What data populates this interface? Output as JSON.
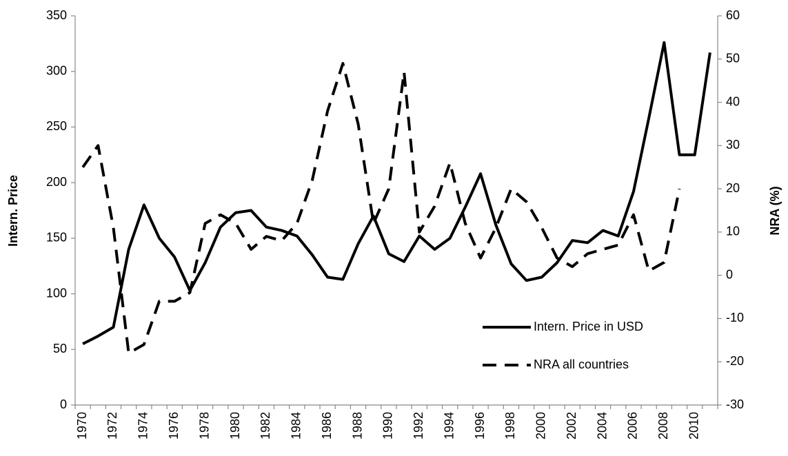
{
  "chart_data": {
    "type": "line",
    "y_label": "Intern. Price",
    "y2_label": "NRA (%)",
    "categories": [
      "1970",
      null,
      "1972",
      null,
      "1974",
      null,
      "1976",
      null,
      "1978",
      null,
      "1980",
      null,
      "1982",
      null,
      "1984",
      null,
      "1986",
      null,
      "1988",
      null,
      "1990",
      null,
      "1992",
      null,
      "1994",
      null,
      "1996",
      null,
      "1998",
      null,
      "2000",
      null,
      "2002",
      null,
      "2004",
      null,
      "2006",
      null,
      "2008",
      null,
      "2010",
      null
    ],
    "series": [
      {
        "name": "Intern. Price in USD",
        "color": "#000000",
        "style": "solid",
        "values": [
          55,
          62,
          70,
          140,
          180,
          150,
          133,
          103,
          128,
          160,
          173,
          175,
          160,
          157,
          152,
          135,
          115,
          113,
          145,
          170,
          136,
          129,
          152,
          140,
          150,
          178,
          208,
          162,
          127,
          112,
          115,
          128,
          148,
          146,
          157,
          152,
          192,
          258,
          326,
          225,
          225,
          317
        ]
      },
      {
        "name": "NRA all countries",
        "color": "#000000",
        "style": "dashed",
        "axis": "y2",
        "values": [
          25,
          30,
          11,
          -18,
          -16,
          -6,
          -6,
          -4,
          12,
          14,
          12,
          6,
          9,
          8,
          12,
          22,
          38,
          49,
          35,
          12,
          20,
          47,
          10,
          16,
          26,
          12,
          4,
          11,
          20,
          17,
          11,
          4,
          2,
          5,
          6,
          7,
          14,
          1,
          3,
          20,
          null,
          null
        ]
      }
    ],
    "ylim": [
      0,
      350
    ],
    "yticks": [
      0,
      50,
      100,
      150,
      200,
      250,
      300,
      350
    ],
    "y2lim": [
      -30,
      60
    ],
    "y2ticks": [
      -30,
      -20,
      -10,
      0,
      10,
      20,
      30,
      40,
      50,
      60
    ],
    "legend": "lower right",
    "grid": false
  }
}
